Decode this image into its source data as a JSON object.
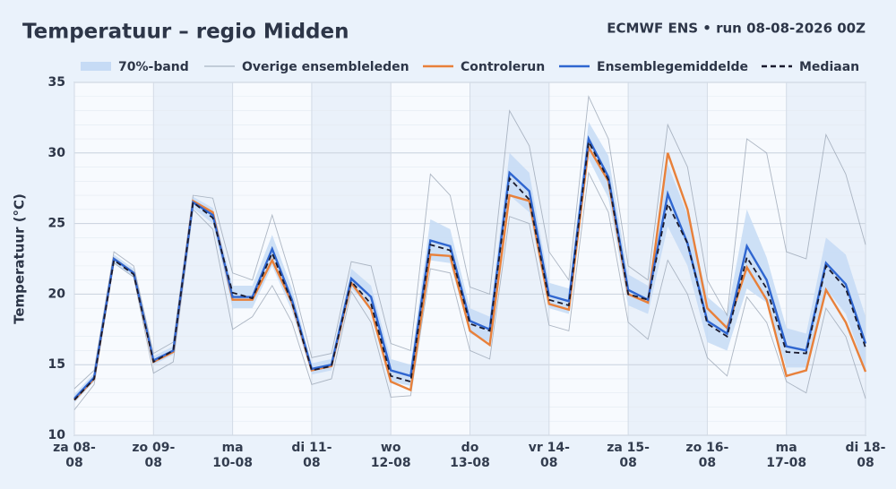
{
  "chart_data": {
    "type": "line",
    "title": "Temperatuur – regio Midden",
    "subtitle": "ECMWF ENS • run 08-08-2026 00Z",
    "y_label": "Temperatuur (°C)",
    "categories": [
      "za 08-08",
      null,
      null,
      null,
      "zo 09-08",
      null,
      null,
      null,
      "ma 10-08",
      null,
      null,
      null,
      "di 11-08",
      null,
      null,
      null,
      "wo 12-08",
      null,
      null,
      null,
      "do 13-08",
      null,
      null,
      null,
      "vr 14-08",
      null,
      null,
      null,
      "za 15-08",
      null,
      null,
      null,
      "zo 16-08",
      null,
      null,
      null,
      "ma 17-08",
      null,
      null,
      null,
      "di 18-08"
    ],
    "ylim": [
      10,
      35
    ],
    "yticks": [
      10,
      15,
      20,
      25,
      30,
      35
    ],
    "grid": true,
    "band": {
      "name": "70%-band",
      "color": "#c6dbf5",
      "lower": [
        12.3,
        13.8,
        22.2,
        21.2,
        15.0,
        15.7,
        26.1,
        25.0,
        19.0,
        19.0,
        22.0,
        18.8,
        14.3,
        14.6,
        20.4,
        19.0,
        13.8,
        13.5,
        22.4,
        22.2,
        17.2,
        16.6,
        27.0,
        25.8,
        19.0,
        18.6,
        29.6,
        26.8,
        19.2,
        18.6,
        24.8,
        22.0,
        16.6,
        16.0,
        20.4,
        19.4,
        14.8,
        14.8,
        20.4,
        18.6,
        14.6
      ],
      "upper": [
        12.9,
        14.4,
        22.8,
        21.8,
        15.6,
        16.3,
        26.9,
        26.1,
        20.6,
        20.6,
        24.2,
        20.4,
        15.1,
        15.4,
        21.8,
        20.6,
        15.4,
        15.0,
        25.3,
        24.6,
        19.0,
        18.4,
        30.0,
        28.6,
        20.8,
        20.4,
        32.2,
        29.8,
        21.4,
        20.6,
        29.2,
        25.6,
        19.8,
        18.6,
        26.0,
        22.6,
        17.6,
        17.2,
        24.0,
        22.8,
        18.4
      ]
    },
    "members": {
      "name": "Overige ensembleleden",
      "color": "#9aa5b4",
      "values": [
        [
          13.3,
          14.6,
          23.0,
          22.0,
          15.8,
          16.6,
          27.0,
          26.8,
          21.5,
          21.0,
          25.6,
          21.0,
          15.5,
          15.8,
          22.3,
          22.0,
          16.5,
          16.0,
          28.5,
          27.0,
          20.5,
          20.0,
          33.0,
          30.5,
          23.0,
          21.0,
          34.0,
          31.0,
          22.0,
          21.0,
          32.0,
          29.0,
          21.0,
          18.5,
          31.0,
          30.0,
          23.0,
          22.5,
          31.3,
          28.5,
          23.5
        ],
        [
          11.8,
          13.6,
          22.2,
          21.2,
          14.4,
          15.2,
          26.0,
          24.6,
          17.5,
          18.4,
          20.6,
          18.0,
          13.6,
          14.0,
          20.2,
          18.0,
          12.7,
          12.8,
          21.8,
          21.5,
          16.0,
          15.4,
          25.5,
          25.0,
          17.8,
          17.4,
          28.6,
          25.8,
          18.0,
          16.8,
          22.4,
          20.0,
          15.5,
          14.2,
          19.8,
          18.0,
          13.8,
          13.0,
          19.0,
          17.0,
          12.6
        ]
      ]
    },
    "series": [
      {
        "name": "Controlerun",
        "color": "#e8803a",
        "dash": false,
        "values": [
          12.5,
          14.0,
          22.5,
          21.5,
          15.2,
          15.9,
          26.6,
          25.8,
          19.6,
          19.6,
          22.4,
          19.4,
          14.6,
          14.9,
          20.8,
          18.9,
          13.8,
          13.2,
          22.8,
          22.7,
          17.4,
          16.4,
          27.0,
          26.6,
          19.3,
          18.9,
          30.4,
          28.0,
          20.0,
          19.4,
          30.0,
          26.0,
          19.0,
          17.6,
          21.9,
          19.6,
          14.2,
          14.6,
          20.3,
          18.0,
          14.5
        ]
      },
      {
        "name": "Ensemblegemiddelde",
        "color": "#2f66d0",
        "dash": false,
        "values": [
          12.6,
          14.1,
          22.5,
          21.5,
          15.3,
          16.0,
          26.5,
          25.6,
          19.8,
          19.8,
          23.2,
          19.6,
          14.7,
          15.0,
          21.1,
          19.8,
          14.6,
          14.2,
          23.8,
          23.4,
          18.1,
          17.5,
          28.6,
          27.3,
          19.9,
          19.5,
          31.0,
          28.3,
          20.3,
          19.6,
          27.1,
          23.6,
          18.1,
          17.2,
          23.4,
          21.0,
          16.3,
          16.0,
          22.2,
          20.7,
          16.5
        ]
      },
      {
        "name": "Mediaan",
        "color": "#1a1a2e",
        "dash": true,
        "values": [
          12.5,
          14.0,
          22.4,
          21.4,
          15.2,
          16.0,
          26.5,
          25.4,
          20.1,
          19.7,
          22.9,
          19.4,
          14.6,
          14.9,
          20.9,
          19.3,
          14.2,
          13.8,
          23.5,
          23.1,
          17.9,
          17.4,
          28.2,
          26.7,
          19.6,
          19.2,
          30.8,
          28.1,
          20.0,
          19.6,
          26.4,
          23.6,
          17.9,
          17.0,
          22.6,
          20.4,
          15.9,
          15.8,
          22.0,
          20.4,
          16.2
        ]
      }
    ]
  }
}
